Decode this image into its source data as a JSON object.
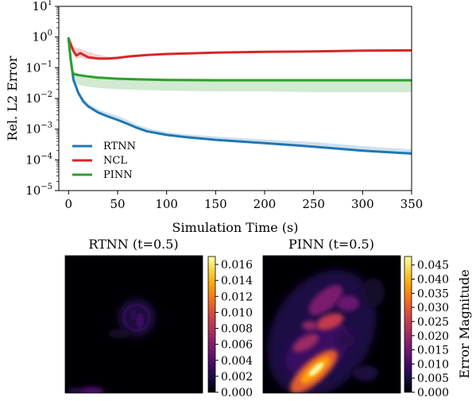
{
  "chart_data": [
    {
      "type": "line",
      "xlabel": "Simulation Time (s)",
      "ylabel": "Rel. L2 Error",
      "xlim": [
        -10,
        350
      ],
      "ylim": [
        1e-05,
        10
      ],
      "yscale": "log",
      "x_ticks": [
        0,
        50,
        100,
        150,
        200,
        250,
        300,
        350
      ],
      "y_ticks": [
        {
          "value": 1e-05,
          "base": "10",
          "exp": "−5"
        },
        {
          "value": 0.0001,
          "base": "10",
          "exp": "−4"
        },
        {
          "value": 0.001,
          "base": "10",
          "exp": "−3"
        },
        {
          "value": 0.01,
          "base": "10",
          "exp": "−2"
        },
        {
          "value": 0.1,
          "base": "10",
          "exp": "−1"
        },
        {
          "value": 1,
          "base": "10",
          "exp": "0"
        },
        {
          "value": 10,
          "base": "10",
          "exp": "1"
        }
      ],
      "grid": false,
      "legend": "lower-left",
      "series": [
        {
          "name": "RTNN",
          "color": "#1f77b4",
          "x": [
            0,
            2,
            5,
            10,
            15,
            20,
            30,
            40,
            50,
            60,
            70,
            80,
            100,
            120,
            150,
            200,
            250,
            300,
            350
          ],
          "y": [
            0.9,
            0.2,
            0.04,
            0.015,
            0.008,
            0.0055,
            0.0035,
            0.0026,
            0.002,
            0.0015,
            0.0011,
            0.00085,
            0.00065,
            0.00055,
            0.00045,
            0.00035,
            0.00027,
            0.0002,
            0.00016
          ],
          "y_low": [
            0.9,
            0.18,
            0.035,
            0.013,
            0.007,
            0.005,
            0.0033,
            0.0025,
            0.0019,
            0.0014,
            0.001,
            0.0008,
            0.00062,
            0.00052,
            0.00042,
            0.00033,
            0.00025,
            0.00019,
            0.00015
          ],
          "y_high": [
            0.9,
            0.23,
            0.05,
            0.018,
            0.01,
            0.007,
            0.0045,
            0.0034,
            0.0027,
            0.002,
            0.0014,
            0.0011,
            0.0008,
            0.00068,
            0.00058,
            0.00046,
            0.00038,
            0.00028,
            0.00022
          ]
        },
        {
          "name": "NCL",
          "color": "#d62728",
          "x": [
            0,
            3,
            5,
            8,
            12,
            20,
            30,
            40,
            50,
            60,
            80,
            100,
            150,
            200,
            250,
            300,
            350
          ],
          "y": [
            0.9,
            0.5,
            0.35,
            0.25,
            0.3,
            0.22,
            0.2,
            0.2,
            0.21,
            0.23,
            0.26,
            0.28,
            0.31,
            0.33,
            0.34,
            0.36,
            0.37
          ],
          "y_low": [
            0.9,
            0.4,
            0.27,
            0.2,
            0.21,
            0.19,
            0.18,
            0.18,
            0.19,
            0.21,
            0.24,
            0.26,
            0.29,
            0.31,
            0.32,
            0.34,
            0.35
          ],
          "y_high": [
            0.9,
            0.65,
            0.5,
            0.45,
            0.42,
            0.33,
            0.27,
            0.23,
            0.22,
            0.24,
            0.28,
            0.3,
            0.33,
            0.35,
            0.37,
            0.39,
            0.4
          ]
        },
        {
          "name": "PINN",
          "color": "#2ca02c",
          "x": [
            0,
            2,
            4,
            6,
            10,
            20,
            30,
            50,
            70,
            100,
            150,
            200,
            250,
            300,
            350
          ],
          "y": [
            0.9,
            0.2,
            0.07,
            0.062,
            0.058,
            0.052,
            0.048,
            0.044,
            0.042,
            0.04,
            0.039,
            0.039,
            0.039,
            0.039,
            0.039
          ],
          "y_low": [
            0.9,
            0.12,
            0.045,
            0.035,
            0.028,
            0.024,
            0.022,
            0.02,
            0.019,
            0.018,
            0.017,
            0.017,
            0.016,
            0.016,
            0.016
          ],
          "y_high": [
            0.9,
            0.25,
            0.075,
            0.066,
            0.062,
            0.056,
            0.052,
            0.048,
            0.046,
            0.045,
            0.044,
            0.044,
            0.044,
            0.044,
            0.044
          ]
        }
      ]
    },
    {
      "type": "heatmap",
      "title": "RTNN (t=0.5)",
      "colormap": "inferno",
      "colorbar_range": [
        0,
        0.017
      ],
      "colorbar_ticks": [
        "0.000",
        "0.002",
        "0.004",
        "0.006",
        "0.008",
        "0.010",
        "0.012",
        "0.014",
        "0.016"
      ]
    },
    {
      "type": "heatmap",
      "title": "PINN (t=0.5)",
      "colormap": "inferno",
      "colorbar_label": "Error Magnitude",
      "colorbar_range": [
        0,
        0.048
      ],
      "colorbar_ticks": [
        "0.000",
        "0.005",
        "0.010",
        "0.015",
        "0.020",
        "0.025",
        "0.030",
        "0.035",
        "0.040",
        "0.045"
      ]
    }
  ]
}
